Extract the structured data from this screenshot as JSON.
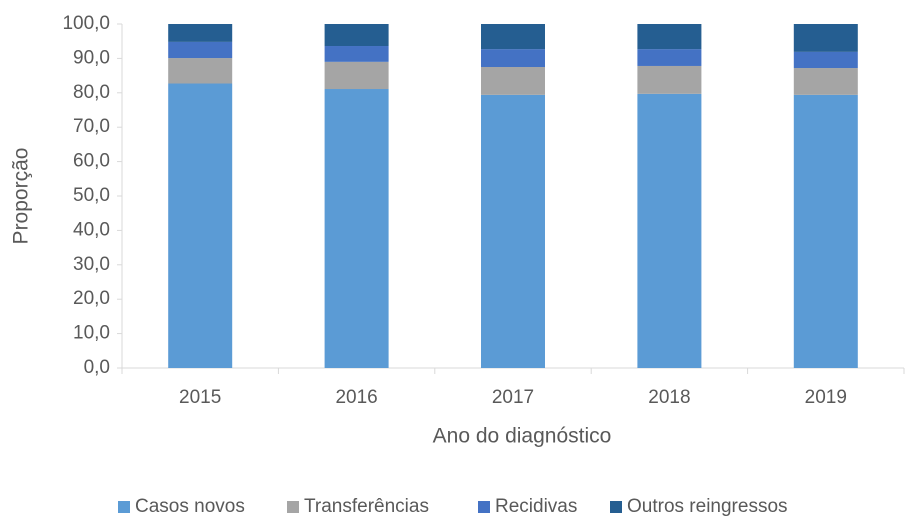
{
  "chart_data": {
    "type": "stacked_bar",
    "categories": [
      "2015",
      "2016",
      "2017",
      "2018",
      "2019"
    ],
    "series": [
      {
        "name": "Casos novos",
        "color": "#5b9bd5",
        "values": [
          82.7,
          81.1,
          79.4,
          79.7,
          79.4
        ]
      },
      {
        "name": "Transferências",
        "color": "#a5a5a5",
        "values": [
          7.4,
          7.9,
          8.1,
          8.1,
          7.8
        ]
      },
      {
        "name": "Recidivas",
        "color": "#4472c4",
        "values": [
          4.7,
          4.6,
          5.2,
          4.9,
          4.7
        ]
      },
      {
        "name": "Outros reingressos",
        "color": "#255e91",
        "values": [
          5.2,
          6.4,
          7.3,
          7.3,
          8.1
        ]
      }
    ],
    "xlabel": "Ano do diagnóstico",
    "ylabel": "Proporção",
    "ylim": [
      0,
      100
    ],
    "yticks": [
      {
        "value": 0,
        "label": "0,0"
      },
      {
        "value": 10,
        "label": "10,0"
      },
      {
        "value": 20,
        "label": "20,0"
      },
      {
        "value": 30,
        "label": "30,0"
      },
      {
        "value": 40,
        "label": "40,0"
      },
      {
        "value": 50,
        "label": "50,0"
      },
      {
        "value": 60,
        "label": "60,0"
      },
      {
        "value": 70,
        "label": "70,0"
      },
      {
        "value": 80,
        "label": "80,0"
      },
      {
        "value": 90,
        "label": "90,0"
      },
      {
        "value": 100,
        "label": "100,0"
      }
    ],
    "legend": "bottom"
  }
}
